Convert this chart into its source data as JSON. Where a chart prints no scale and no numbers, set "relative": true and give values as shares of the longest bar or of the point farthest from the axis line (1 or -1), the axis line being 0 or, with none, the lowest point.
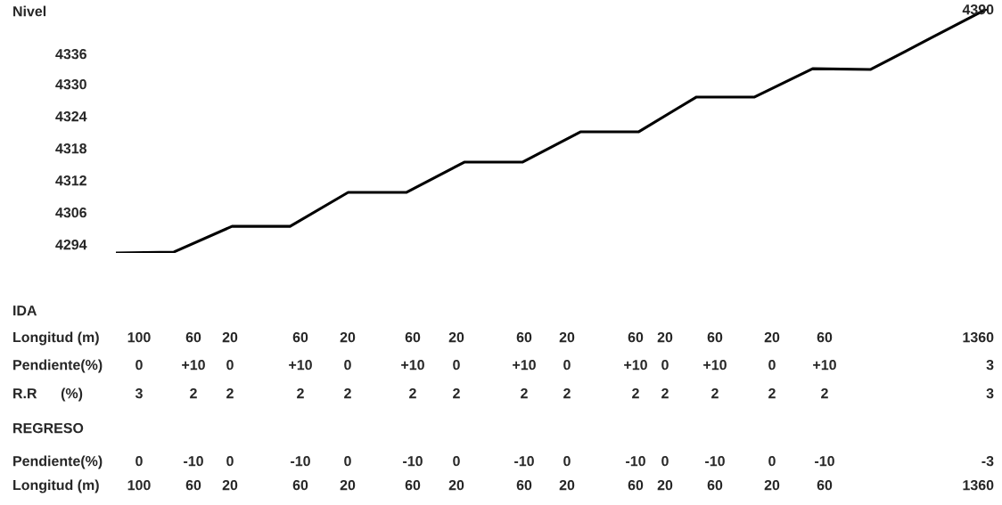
{
  "chart_data": {
    "type": "line",
    "relative": true,
    "ylabel": "Nivel",
    "categories": [
      null,
      null,
      null,
      null,
      null,
      null,
      null,
      null,
      null,
      null,
      null,
      null,
      null,
      null,
      null,
      null
    ],
    "series": [
      {
        "color": "#000000",
        "values": [
          0,
          0.004,
          0.109,
          0.109,
          0.248,
          0.248,
          0.372,
          0.372,
          0.496,
          0.496,
          0.639,
          0.639,
          0.755,
          0.752,
          0.876,
          1
        ]
      }
    ],
    "annotations": [
      "4336",
      "4330",
      "4324",
      "4318",
      "4312",
      "4306",
      "4294",
      "4390",
      "IDA",
      "Longitud (m)",
      "100",
      "60",
      "20",
      "60",
      "20",
      "60",
      "20",
      "60",
      "20",
      "60",
      "20",
      "60",
      "20",
      "60",
      "1360",
      "Pendiente(%)",
      "0",
      "+10",
      "0",
      "+10",
      "0",
      "+10",
      "0",
      "+10",
      "0",
      "+10",
      "0",
      "+10",
      "0",
      "+10",
      "3",
      "R.R      (%)",
      "3",
      "2",
      "2",
      "2",
      "2",
      "2",
      "2",
      "2",
      "2",
      "2",
      "2",
      "2",
      "2",
      "2",
      "3",
      "REGRESO",
      "Pendiente(%)",
      "0",
      "-10",
      "0",
      "-10",
      "0",
      "-10",
      "0",
      "-10",
      "0",
      "-10",
      "0",
      "-10",
      "0",
      "-10",
      "-3",
      "Longitud (m)",
      "100",
      "60",
      "20",
      "60",
      "20",
      "60",
      "20",
      "60",
      "20",
      "60",
      "20",
      "60",
      "20",
      "60",
      "1360"
    ]
  }
}
